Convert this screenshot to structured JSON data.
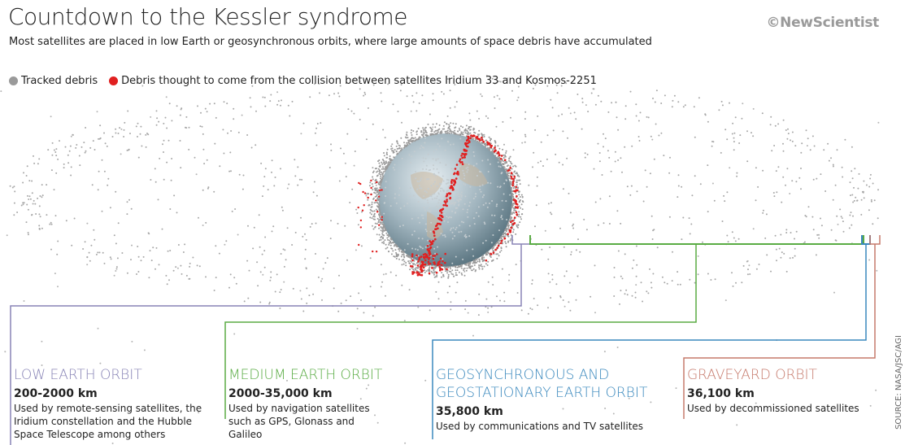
{
  "header": {
    "title": "Countdown to the Kessler syndrome",
    "subtitle": "Most satellites are placed in low Earth or geosynchronous orbits, where large amounts of space debris have accumulated",
    "logo": "©NewScientist"
  },
  "legend": [
    {
      "label": "Tracked debris",
      "color": "#9a9a9a"
    },
    {
      "label": "Debris thought to come from the collision between satellites Iridium 33 and Kosmos-2251",
      "color": "#e02020"
    }
  ],
  "orbits": [
    {
      "name": "LOW EARTH ORBIT",
      "altitude": "200-2000 km",
      "description": "Used by remote-sensing satellites, the Iridium constellation and the Hubble Space Telescope among others",
      "color": "#8884b6"
    },
    {
      "name": "MEDIUM EARTH ORBIT",
      "altitude": "2000-35,000 km",
      "description": "Used by navigation satellites such as GPS, Glonass and Galileo",
      "color": "#5aac44"
    },
    {
      "name": "GEOSYNCHRONOUS AND GEOSTATIONARY EARTH ORBIT",
      "altitude": "35,800 km",
      "description": "Used by communications and TV satellites",
      "color": "#3a88bd"
    },
    {
      "name": "GRAVEYARD ORBIT",
      "altitude": "36,100 km",
      "description": "Used by decommissioned satellites",
      "color": "#c67a6c"
    }
  ],
  "source": "SOURCE: NASA/JSC/AGI"
}
